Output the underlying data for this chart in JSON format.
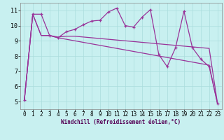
{
  "bg_color": "#c8f0f0",
  "line_color": "#993399",
  "grid_color": "#aadddd",
  "xlabel": "Windchill (Refroidissement éolien,°C)",
  "x_data": [
    0,
    1,
    2,
    3,
    4,
    5,
    6,
    7,
    8,
    9,
    10,
    11,
    12,
    13,
    14,
    15,
    16,
    17,
    18,
    19,
    20,
    21,
    22,
    23
  ],
  "series1": [
    5.1,
    10.75,
    10.75,
    9.35,
    9.2,
    9.6,
    9.75,
    10.05,
    10.3,
    10.35,
    10.9,
    11.15,
    10.0,
    9.9,
    10.55,
    11.05,
    8.1,
    7.3,
    8.55,
    10.95,
    8.55,
    7.8,
    7.3,
    4.85
  ],
  "series2": [
    5.1,
    10.75,
    9.35,
    9.35,
    9.25,
    9.3,
    9.3,
    9.25,
    9.2,
    9.15,
    9.1,
    9.05,
    9.0,
    8.95,
    8.9,
    8.85,
    8.8,
    8.75,
    8.7,
    8.65,
    8.6,
    8.55,
    8.5,
    4.85
  ],
  "series3": [
    5.1,
    10.75,
    9.35,
    9.35,
    9.2,
    9.1,
    9.0,
    8.9,
    8.8,
    8.7,
    8.6,
    8.5,
    8.4,
    8.3,
    8.2,
    8.1,
    8.0,
    7.9,
    7.8,
    7.7,
    7.6,
    7.5,
    7.4,
    4.85
  ],
  "ylim": [
    4.5,
    11.5
  ],
  "xlim_min": -0.5,
  "xlim_max": 23.5,
  "yticks": [
    5,
    6,
    7,
    8,
    9,
    10,
    11
  ],
  "xticks": [
    0,
    1,
    2,
    3,
    4,
    5,
    6,
    7,
    8,
    9,
    10,
    11,
    12,
    13,
    14,
    15,
    16,
    17,
    18,
    19,
    20,
    21,
    22,
    23
  ],
  "tick_fontsize": 5.5,
  "xlabel_fontsize": 5.5,
  "xlabel_color": "#550055",
  "spine_color": "#888888",
  "marker_size": 3,
  "line_width": 0.9
}
